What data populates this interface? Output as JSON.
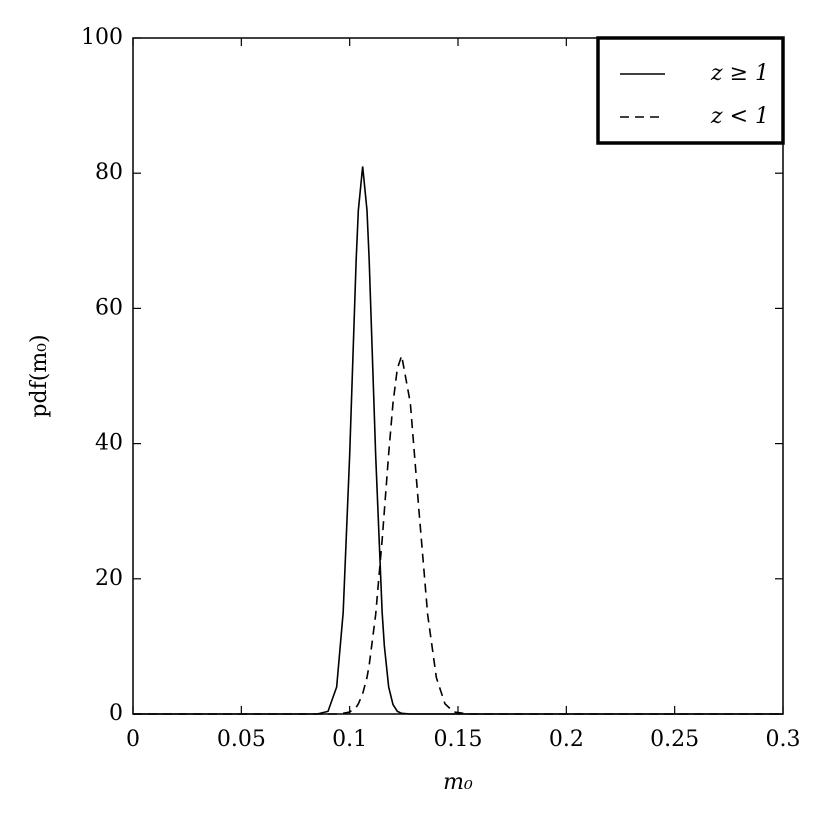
{
  "chart_data": {
    "type": "line",
    "xlabel": "m₀",
    "ylabel": "pdf(m₀)",
    "x": [
      0,
      0.05,
      0.085,
      0.09,
      0.094,
      0.097,
      0.1,
      0.103,
      0.104,
      0.106,
      0.108,
      0.109,
      0.112,
      0.115,
      0.116,
      0.118,
      0.12,
      0.122,
      0.124,
      0.128,
      0.132,
      0.136,
      0.14,
      0.144,
      0.148,
      0.155,
      0.2,
      0.3
    ],
    "series": [
      {
        "name": "z ≥ 1",
        "color": "#000000",
        "linestyle": "solid",
        "values": [
          0,
          0,
          0,
          0.39,
          4.0,
          15.0,
          38.3,
          67.2,
          74.5,
          81,
          74.5,
          67.2,
          38.3,
          15.0,
          10.1,
          4.0,
          1.4,
          0.39,
          0.1,
          0,
          0,
          0,
          0,
          0,
          0,
          0,
          0,
          0
        ]
      },
      {
        "name": "z < 1",
        "color": "#000000",
        "linestyle": "dashed",
        "values": [
          0,
          0,
          0,
          0,
          0,
          0.1,
          0.3,
          1.0,
          1.5,
          3.0,
          5.4,
          7.2,
          14.7,
          25.8,
          30.0,
          38.5,
          46.0,
          51.1,
          53,
          46.0,
          30.0,
          14.7,
          5.4,
          1.5,
          0.3,
          0,
          0,
          0
        ]
      }
    ],
    "xlim": [
      0,
      0.3
    ],
    "xticks": [
      0,
      0.05,
      0.1,
      0.15,
      0.2,
      0.25,
      0.3
    ],
    "ylim": [
      0,
      100
    ],
    "yticks": [
      0,
      20,
      40,
      60,
      80,
      100
    ],
    "legend": "upper right",
    "grid": false
  }
}
